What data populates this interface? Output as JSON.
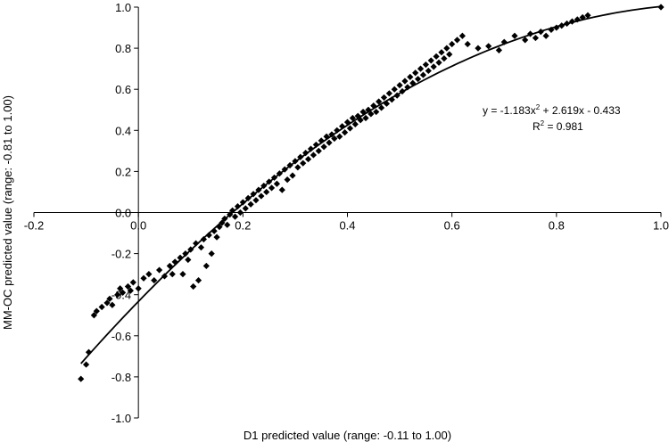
{
  "chart_data": {
    "type": "scatter",
    "title": "",
    "xlabel": "D1 predicted value (range: -0.11 to 1.00)",
    "ylabel": "MM-OC predicted value (range: -0.81 to 1.00)",
    "xlim": [
      -0.2,
      1.0
    ],
    "ylim": [
      -1.0,
      1.0
    ],
    "x_ticks": [
      "-0.2",
      "0.0",
      "0.2",
      "0.4",
      "0.6",
      "0.8",
      "1.0"
    ],
    "y_ticks": [
      "-1.0",
      "-0.8",
      "-0.6",
      "-0.4",
      "-0.2",
      "0.0",
      "0.2",
      "0.4",
      "0.6",
      "0.8",
      "1.0"
    ],
    "marker": "diamond",
    "marker_color": "#000000",
    "grid": false,
    "legend": "none",
    "trendline": {
      "type": "polynomial",
      "coefficients": [
        -1.183,
        2.619,
        -0.433
      ],
      "x_range": [
        -0.11,
        1.0
      ],
      "equation_main": "y = -1.183x",
      "equation_exp": "2",
      "equation_rest": " + 2.619x - 0.433",
      "r2_main": "R",
      "r2_exp": "2",
      "r2_rest": " = 0.981"
    },
    "points": [
      [
        -0.11,
        -0.81
      ],
      [
        -0.1,
        -0.74
      ],
      [
        -0.095,
        -0.68
      ],
      [
        -0.085,
        -0.5
      ],
      [
        -0.08,
        -0.48
      ],
      [
        -0.07,
        -0.46
      ],
      [
        -0.06,
        -0.44
      ],
      [
        -0.055,
        -0.42
      ],
      [
        -0.05,
        -0.45
      ],
      [
        -0.04,
        -0.4
      ],
      [
        -0.035,
        -0.37
      ],
      [
        -0.03,
        -0.39
      ],
      [
        -0.02,
        -0.36
      ],
      [
        -0.015,
        -0.38
      ],
      [
        -0.01,
        -0.34
      ],
      [
        0.0,
        -0.37
      ],
      [
        0.01,
        -0.32
      ],
      [
        0.02,
        -0.3
      ],
      [
        0.03,
        -0.33
      ],
      [
        0.04,
        -0.28
      ],
      [
        0.05,
        -0.31
      ],
      [
        0.06,
        -0.26
      ],
      [
        0.065,
        -0.3
      ],
      [
        0.07,
        -0.24
      ],
      [
        0.08,
        -0.22
      ],
      [
        0.085,
        -0.3
      ],
      [
        0.09,
        -0.2
      ],
      [
        0.095,
        -0.23
      ],
      [
        0.1,
        -0.18
      ],
      [
        0.105,
        -0.36
      ],
      [
        0.11,
        -0.15
      ],
      [
        0.115,
        -0.33
      ],
      [
        0.12,
        -0.17
      ],
      [
        0.125,
        -0.13
      ],
      [
        0.13,
        -0.26
      ],
      [
        0.135,
        -0.11
      ],
      [
        0.14,
        -0.2
      ],
      [
        0.145,
        -0.09
      ],
      [
        0.15,
        -0.12
      ],
      [
        0.155,
        -0.07
      ],
      [
        0.16,
        -0.05
      ],
      [
        0.165,
        -0.03
      ],
      [
        0.17,
        -0.06
      ],
      [
        0.175,
        -0.01
      ],
      [
        0.18,
        0.01
      ],
      [
        0.185,
        -0.02
      ],
      [
        0.19,
        0.03
      ],
      [
        0.195,
        0.0
      ],
      [
        0.2,
        0.05
      ],
      [
        0.205,
        0.02
      ],
      [
        0.21,
        0.07
      ],
      [
        0.215,
        0.04
      ],
      [
        0.22,
        0.09
      ],
      [
        0.225,
        0.06
      ],
      [
        0.23,
        0.11
      ],
      [
        0.235,
        0.08
      ],
      [
        0.24,
        0.13
      ],
      [
        0.245,
        0.1
      ],
      [
        0.25,
        0.15
      ],
      [
        0.255,
        0.12
      ],
      [
        0.26,
        0.17
      ],
      [
        0.265,
        0.14
      ],
      [
        0.27,
        0.19
      ],
      [
        0.275,
        0.11
      ],
      [
        0.28,
        0.21
      ],
      [
        0.285,
        0.16
      ],
      [
        0.29,
        0.23
      ],
      [
        0.295,
        0.18
      ],
      [
        0.3,
        0.25
      ],
      [
        0.305,
        0.22
      ],
      [
        0.31,
        0.27
      ],
      [
        0.315,
        0.24
      ],
      [
        0.32,
        0.29
      ],
      [
        0.325,
        0.26
      ],
      [
        0.33,
        0.31
      ],
      [
        0.335,
        0.28
      ],
      [
        0.34,
        0.33
      ],
      [
        0.345,
        0.3
      ],
      [
        0.35,
        0.35
      ],
      [
        0.355,
        0.32
      ],
      [
        0.36,
        0.37
      ],
      [
        0.365,
        0.34
      ],
      [
        0.37,
        0.38
      ],
      [
        0.375,
        0.36
      ],
      [
        0.38,
        0.4
      ],
      [
        0.385,
        0.37
      ],
      [
        0.39,
        0.42
      ],
      [
        0.395,
        0.39
      ],
      [
        0.4,
        0.44
      ],
      [
        0.405,
        0.41
      ],
      [
        0.41,
        0.46
      ],
      [
        0.415,
        0.43
      ],
      [
        0.42,
        0.47
      ],
      [
        0.425,
        0.45
      ],
      [
        0.43,
        0.49
      ],
      [
        0.435,
        0.46
      ],
      [
        0.44,
        0.5
      ],
      [
        0.445,
        0.48
      ],
      [
        0.45,
        0.52
      ],
      [
        0.455,
        0.49
      ],
      [
        0.46,
        0.54
      ],
      [
        0.465,
        0.51
      ],
      [
        0.47,
        0.56
      ],
      [
        0.475,
        0.53
      ],
      [
        0.48,
        0.58
      ],
      [
        0.485,
        0.55
      ],
      [
        0.49,
        0.6
      ],
      [
        0.495,
        0.57
      ],
      [
        0.5,
        0.62
      ],
      [
        0.505,
        0.59
      ],
      [
        0.51,
        0.64
      ],
      [
        0.515,
        0.61
      ],
      [
        0.52,
        0.66
      ],
      [
        0.525,
        0.63
      ],
      [
        0.53,
        0.68
      ],
      [
        0.535,
        0.65
      ],
      [
        0.54,
        0.7
      ],
      [
        0.545,
        0.67
      ],
      [
        0.55,
        0.72
      ],
      [
        0.555,
        0.69
      ],
      [
        0.56,
        0.74
      ],
      [
        0.565,
        0.71
      ],
      [
        0.57,
        0.76
      ],
      [
        0.575,
        0.73
      ],
      [
        0.58,
        0.78
      ],
      [
        0.585,
        0.75
      ],
      [
        0.59,
        0.8
      ],
      [
        0.595,
        0.77
      ],
      [
        0.6,
        0.82
      ],
      [
        0.61,
        0.84
      ],
      [
        0.62,
        0.86
      ],
      [
        0.63,
        0.82
      ],
      [
        0.65,
        0.8
      ],
      [
        0.67,
        0.81
      ],
      [
        0.69,
        0.79
      ],
      [
        0.7,
        0.83
      ],
      [
        0.72,
        0.86
      ],
      [
        0.74,
        0.84
      ],
      [
        0.75,
        0.87
      ],
      [
        0.76,
        0.85
      ],
      [
        0.77,
        0.88
      ],
      [
        0.78,
        0.86
      ],
      [
        0.79,
        0.89
      ],
      [
        0.8,
        0.9
      ],
      [
        0.81,
        0.91
      ],
      [
        0.82,
        0.92
      ],
      [
        0.83,
        0.93
      ],
      [
        0.84,
        0.94
      ],
      [
        0.85,
        0.95
      ],
      [
        0.86,
        0.96
      ],
      [
        1.0,
        1.0
      ]
    ]
  }
}
